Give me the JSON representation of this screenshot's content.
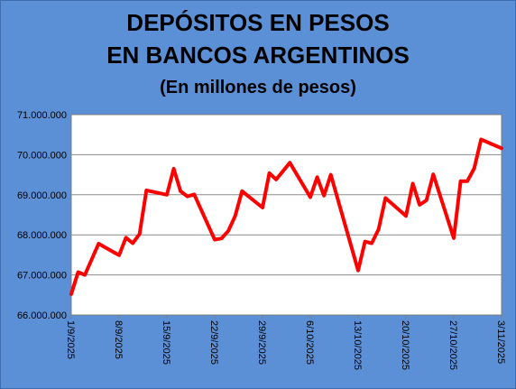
{
  "chart_data": {
    "type": "line",
    "title": "DEPÓSITOS EN PESOS",
    "title_line2": "EN BANCOS ARGENTINOS",
    "subtitle": "(En millones de pesos)",
    "xlabel": "",
    "ylabel": "",
    "ylim": [
      66000000,
      71000000
    ],
    "y_ticks": [
      "66.000.000",
      "67.000.000",
      "68.000.000",
      "69.000.000",
      "70.000.000",
      "71.000.000"
    ],
    "y_tick_values": [
      66000000,
      67000000,
      68000000,
      69000000,
      70000000,
      71000000
    ],
    "x_range": [
      "2025-09-01",
      "2025-11-03"
    ],
    "x_ticks": [
      "1/9/2025",
      "8/9/2025",
      "15/9/2025",
      "22/9/2025",
      "29/9/2025",
      "6/10/2025",
      "13/10/2025",
      "20/10/2025",
      "27/10/2025",
      "3/11/2025"
    ],
    "x_tick_dates": [
      "2025-09-01",
      "2025-09-08",
      "2025-09-15",
      "2025-09-22",
      "2025-09-29",
      "2025-10-06",
      "2025-10-13",
      "2025-10-20",
      "2025-10-27",
      "2025-11-03"
    ],
    "grid": true,
    "line_color": "#ff0000",
    "series": [
      {
        "x": [
          "2025-09-01",
          "2025-09-02",
          "2025-09-03",
          "2025-09-05",
          "2025-09-08",
          "2025-09-09",
          "2025-09-10",
          "2025-09-11",
          "2025-09-12",
          "2025-09-15",
          "2025-09-16",
          "2025-09-17",
          "2025-09-18",
          "2025-09-19",
          "2025-09-22",
          "2025-09-23",
          "2025-09-24",
          "2025-09-25",
          "2025-09-26",
          "2025-09-29",
          "2025-09-30",
          "2025-10-01",
          "2025-10-03",
          "2025-10-06",
          "2025-10-07",
          "2025-10-08",
          "2025-10-09",
          "2025-10-13",
          "2025-10-14",
          "2025-10-15",
          "2025-10-16",
          "2025-10-17",
          "2025-10-20",
          "2025-10-21",
          "2025-10-22",
          "2025-10-23",
          "2025-10-24",
          "2025-10-27",
          "2025-10-28",
          "2025-10-29",
          "2025-10-30",
          "2025-10-31",
          "2025-11-03"
        ],
        "y": [
          66520000,
          67070000,
          67000000,
          67780000,
          67490000,
          67930000,
          67790000,
          68020000,
          69110000,
          69000000,
          69650000,
          69090000,
          68960000,
          69010000,
          67880000,
          67910000,
          68100000,
          68470000,
          69090000,
          68680000,
          69540000,
          69380000,
          69800000,
          68940000,
          69440000,
          68980000,
          69500000,
          67110000,
          67830000,
          67790000,
          68140000,
          68920000,
          68470000,
          69280000,
          68750000,
          68860000,
          69510000,
          67920000,
          69340000,
          69340000,
          69660000,
          70380000,
          70160000
        ]
      }
    ]
  }
}
